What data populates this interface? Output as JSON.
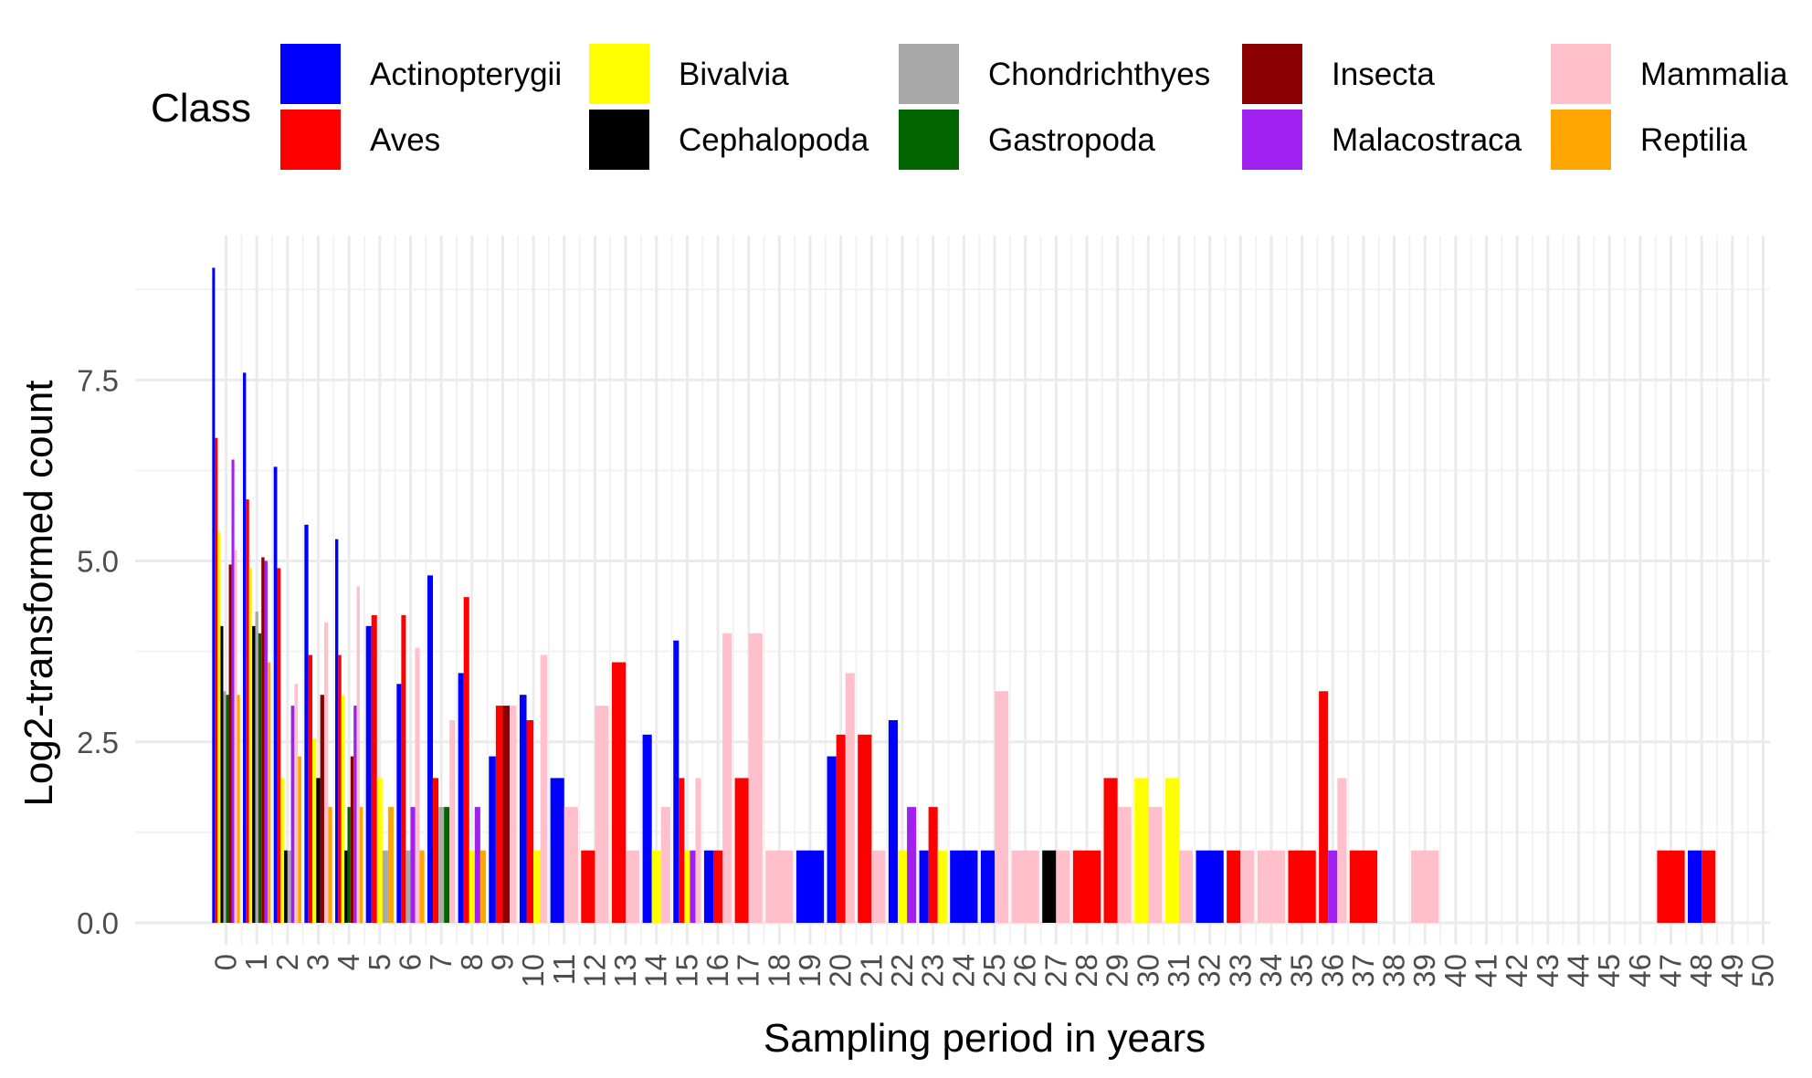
{
  "chart_data": {
    "type": "bar",
    "xlabel": "Sampling period in years",
    "ylabel": "Log2-transformed count",
    "legend_title": "Class",
    "legend_position": "top",
    "grid": true,
    "xlim": [
      0,
      50
    ],
    "ylim": [
      0,
      9.3
    ],
    "x_ticks": [
      "0",
      "1",
      "2",
      "3",
      "4",
      "5",
      "6",
      "7",
      "8",
      "9",
      "10",
      "11",
      "12",
      "13",
      "14",
      "15",
      "16",
      "17",
      "18",
      "19",
      "20",
      "21",
      "22",
      "23",
      "24",
      "25",
      "26",
      "27",
      "28",
      "29",
      "30",
      "31",
      "32",
      "33",
      "34",
      "35",
      "36",
      "37",
      "38",
      "39",
      "40",
      "41",
      "42",
      "43",
      "44",
      "45",
      "46",
      "47",
      "48",
      "49",
      "50"
    ],
    "y_ticks": [
      {
        "value": 0,
        "label": "0.0"
      },
      {
        "value": 2.5,
        "label": "2.5"
      },
      {
        "value": 5,
        "label": "5.0"
      },
      {
        "value": 7.5,
        "label": "7.5"
      }
    ],
    "series": [
      {
        "name": "Actinopterygii",
        "color": "#0000FF",
        "points": [
          [
            0,
            9.05
          ],
          [
            1,
            7.6
          ],
          [
            2,
            6.3
          ],
          [
            3,
            5.5
          ],
          [
            4,
            5.3
          ],
          [
            5,
            4.1
          ],
          [
            6,
            3.3
          ],
          [
            7,
            4.8
          ],
          [
            8,
            3.45
          ],
          [
            9,
            2.3
          ],
          [
            10,
            3.15
          ],
          [
            11,
            2.0
          ],
          [
            14,
            2.6
          ],
          [
            15,
            3.9
          ],
          [
            16,
            1.0
          ],
          [
            19,
            1.0
          ],
          [
            20,
            2.3
          ],
          [
            22,
            2.8
          ],
          [
            23,
            1.0
          ],
          [
            24,
            1.0
          ],
          [
            25,
            1.0
          ],
          [
            32,
            1.0
          ],
          [
            48,
            1.0
          ]
        ]
      },
      {
        "name": "Aves",
        "color": "#FF0000",
        "points": [
          [
            0,
            6.7
          ],
          [
            1,
            5.85
          ],
          [
            2,
            4.9
          ],
          [
            3,
            3.7
          ],
          [
            4,
            3.7
          ],
          [
            5,
            4.25
          ],
          [
            6,
            4.25
          ],
          [
            7,
            2.0
          ],
          [
            8,
            4.5
          ],
          [
            9,
            3.0
          ],
          [
            10,
            2.8
          ],
          [
            12,
            1.0
          ],
          [
            13,
            3.6
          ],
          [
            15,
            2.0
          ],
          [
            16,
            1.0
          ],
          [
            17,
            2.0
          ],
          [
            20,
            2.6
          ],
          [
            21,
            2.6
          ],
          [
            23,
            1.6
          ],
          [
            28,
            1.0
          ],
          [
            29,
            2.0
          ],
          [
            33,
            1.0
          ],
          [
            35,
            1.0
          ],
          [
            36,
            3.2
          ],
          [
            37,
            1.0
          ],
          [
            47,
            1.0
          ],
          [
            48,
            1.0
          ]
        ]
      },
      {
        "name": "Bivalvia",
        "color": "#FFFF00",
        "points": [
          [
            0,
            5.4
          ],
          [
            1,
            4.9
          ],
          [
            2,
            2.0
          ],
          [
            3,
            2.55
          ],
          [
            4,
            3.15
          ],
          [
            5,
            2.0
          ],
          [
            8,
            1.0
          ],
          [
            10,
            1.0
          ],
          [
            14,
            1.0
          ],
          [
            15,
            1.0
          ],
          [
            22,
            1.0
          ],
          [
            23,
            1.0
          ],
          [
            30,
            2.0
          ],
          [
            31,
            2.0
          ]
        ]
      },
      {
        "name": "Cephalopoda",
        "color": "#000000",
        "points": [
          [
            0,
            4.1
          ],
          [
            1,
            4.1
          ],
          [
            2,
            1.0
          ],
          [
            3,
            2.0
          ],
          [
            4,
            1.0
          ],
          [
            27,
            1.0
          ]
        ]
      },
      {
        "name": "Chondrichthyes",
        "color": "#A9A9A9",
        "points": [
          [
            0,
            3.2
          ],
          [
            1,
            4.3
          ],
          [
            2,
            1.0
          ],
          [
            5,
            1.0
          ],
          [
            6,
            1.0
          ],
          [
            7,
            1.6
          ]
        ]
      },
      {
        "name": "Gastropoda",
        "color": "#006400",
        "points": [
          [
            0,
            3.15
          ],
          [
            1,
            4.0
          ],
          [
            4,
            1.6
          ],
          [
            7,
            1.6
          ]
        ]
      },
      {
        "name": "Insecta",
        "color": "#8B0000",
        "points": [
          [
            0,
            4.95
          ],
          [
            1,
            5.05
          ],
          [
            3,
            3.15
          ],
          [
            4,
            2.3
          ],
          [
            9,
            3.0
          ]
        ]
      },
      {
        "name": "Malacostraca",
        "color": "#A020F0",
        "points": [
          [
            0,
            6.4
          ],
          [
            1,
            5.0
          ],
          [
            2,
            3.0
          ],
          [
            4,
            3.0
          ],
          [
            6,
            1.6
          ],
          [
            8,
            1.6
          ],
          [
            15,
            1.0
          ],
          [
            22,
            1.6
          ],
          [
            36,
            1.0
          ]
        ]
      },
      {
        "name": "Mammalia",
        "color": "#FFC0CB",
        "points": [
          [
            0,
            5.15
          ],
          [
            2,
            3.3
          ],
          [
            3,
            4.15
          ],
          [
            4,
            4.65
          ],
          [
            6,
            3.8
          ],
          [
            7,
            2.8
          ],
          [
            9,
            3.0
          ],
          [
            10,
            3.7
          ],
          [
            11,
            1.6
          ],
          [
            12,
            3.0
          ],
          [
            13,
            1.0
          ],
          [
            14,
            1.6
          ],
          [
            15,
            2.0
          ],
          [
            16,
            4.0
          ],
          [
            17,
            4.0
          ],
          [
            18,
            1.0
          ],
          [
            20,
            3.45
          ],
          [
            21,
            1.0
          ],
          [
            25,
            3.2
          ],
          [
            26,
            1.0
          ],
          [
            27,
            1.0
          ],
          [
            29,
            1.6
          ],
          [
            30,
            1.6
          ],
          [
            31,
            1.0
          ],
          [
            33,
            1.0
          ],
          [
            34,
            1.0
          ],
          [
            36,
            2.0
          ],
          [
            39,
            1.0
          ]
        ]
      },
      {
        "name": "Reptilia",
        "color": "#FFA500",
        "points": [
          [
            0,
            3.15
          ],
          [
            1,
            3.6
          ],
          [
            2,
            2.3
          ],
          [
            3,
            1.6
          ],
          [
            4,
            1.6
          ],
          [
            5,
            1.6
          ],
          [
            6,
            1.0
          ],
          [
            8,
            1.0
          ]
        ]
      }
    ]
  }
}
